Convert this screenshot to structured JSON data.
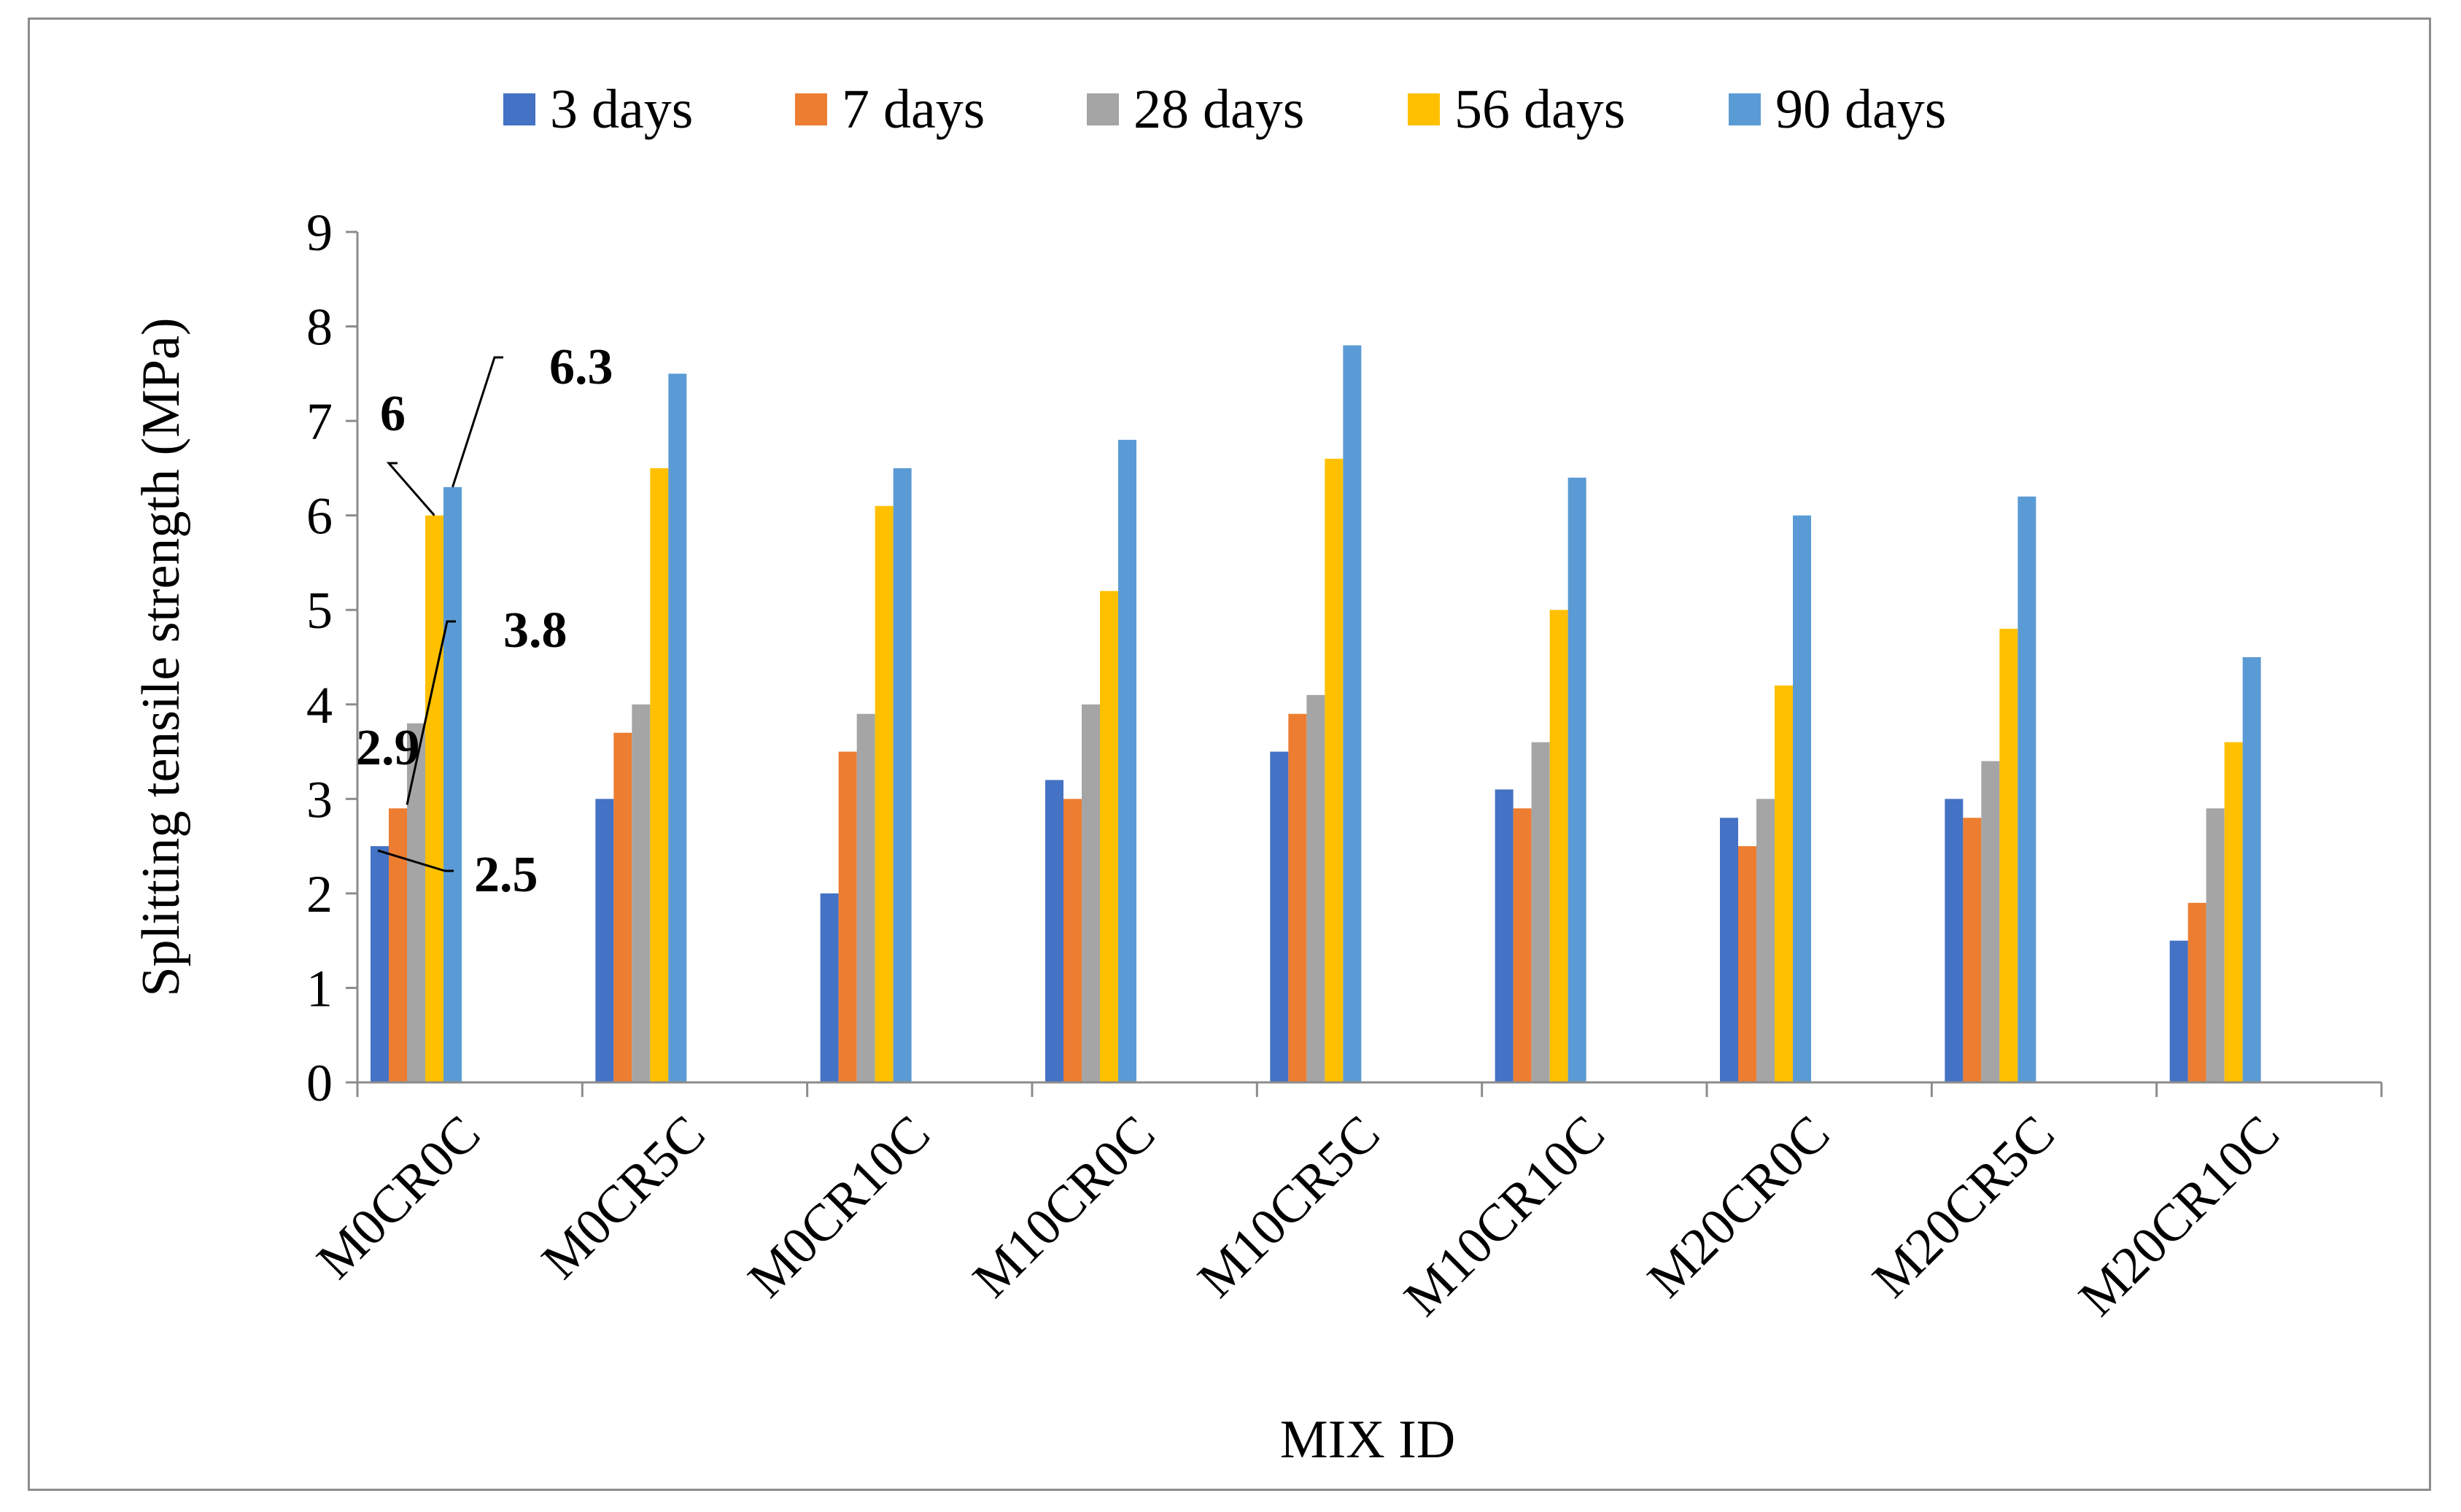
{
  "chart_data": {
    "type": "bar",
    "title": "",
    "xlabel": "MIX ID",
    "ylabel": "Splitting tensile strength (MPa)",
    "ylim": [
      0,
      9
    ],
    "yticks": [
      "0",
      "1",
      "2",
      "3",
      "4",
      "5",
      "6",
      "7",
      "8",
      "9"
    ],
    "grid": false,
    "legend_position": "top",
    "categories": [
      "M0CR0C",
      "M0CR5C",
      "M0CR10C",
      "M10CR0C",
      "M10CR5C",
      "M10CR10C",
      "M20CR0C",
      "M20CR5C",
      "M20CR10C"
    ],
    "series": [
      {
        "name": "3 days",
        "color": "#4472C4",
        "values": [
          2.5,
          3.0,
          2.0,
          3.2,
          3.5,
          3.1,
          2.8,
          3.0,
          1.5
        ]
      },
      {
        "name": "7 days",
        "color": "#ED7D31",
        "values": [
          2.9,
          3.7,
          3.5,
          3.0,
          3.9,
          2.9,
          2.5,
          2.8,
          1.9
        ]
      },
      {
        "name": "28 days",
        "color": "#A5A5A5",
        "values": [
          3.8,
          4.0,
          3.9,
          4.0,
          4.1,
          3.6,
          3.0,
          3.4,
          2.9
        ]
      },
      {
        "name": "56 days",
        "color": "#FFC000",
        "values": [
          6.0,
          6.5,
          6.1,
          5.2,
          6.6,
          5.0,
          4.2,
          4.8,
          3.6
        ]
      },
      {
        "name": "90 days",
        "color": "#5B9BD5",
        "values": [
          6.3,
          7.5,
          6.5,
          6.8,
          7.8,
          6.4,
          6.0,
          6.2,
          4.5
        ]
      }
    ],
    "annotations": [
      {
        "text": "2.5",
        "series": 0,
        "category": 0
      },
      {
        "text": "2.9",
        "series": 1,
        "category": 0
      },
      {
        "text": "3.8",
        "series": 2,
        "category": 0
      },
      {
        "text": "6",
        "series": 3,
        "category": 0
      },
      {
        "text": "6.3",
        "series": 4,
        "category": 0
      }
    ]
  }
}
